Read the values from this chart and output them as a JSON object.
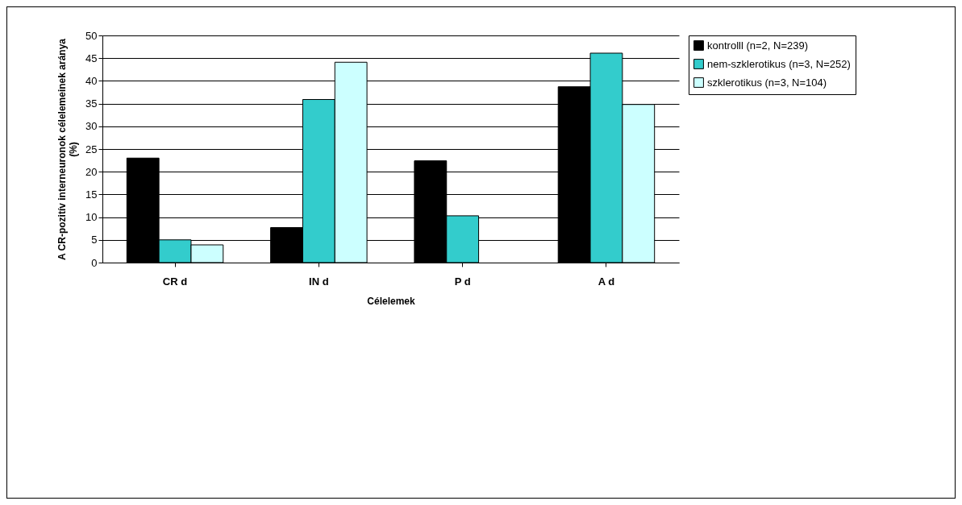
{
  "chart_data": {
    "type": "bar",
    "xlabel": "Célelemek",
    "ylabel": "A CR-pozitív interneuronok célelemeinek aránya (%)",
    "categories": [
      "CR d",
      "IN d",
      "P d",
      "A d"
    ],
    "series": [
      {
        "name": "kontrolll (n=2, N=239)",
        "color": "#000000",
        "values": [
          23,
          7.7,
          22.4,
          38.7
        ]
      },
      {
        "name": "nem-szklerotikus (n=3, N=252)",
        "color": "#33cccc",
        "values": [
          5,
          35.9,
          10.3,
          46.1
        ]
      },
      {
        "name": "szklerotikus (n=3, N=104)",
        "color": "#ccffff",
        "values": [
          3.9,
          44.1,
          null,
          34.8
        ]
      }
    ],
    "ylim": [
      0,
      50
    ],
    "yticks": [
      0,
      5,
      10,
      15,
      20,
      25,
      30,
      35,
      40,
      45,
      50
    ],
    "grid": "y",
    "legend": "right"
  }
}
